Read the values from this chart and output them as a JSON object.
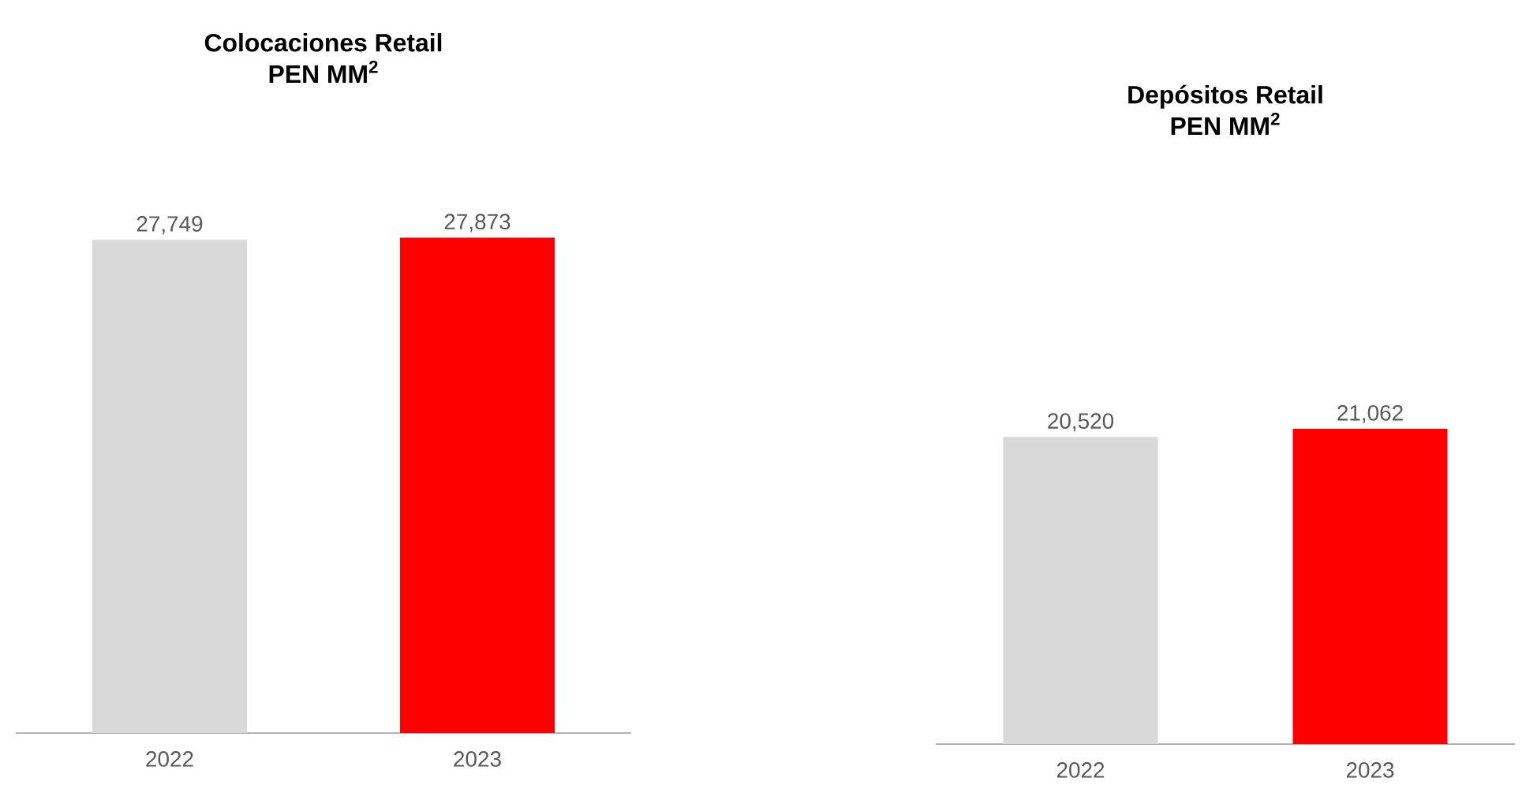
{
  "chart_data": [
    {
      "type": "bar",
      "title": "Colocaciones Retail",
      "subtitle": "PEN MM$^{2}$",
      "categories": [
        "2022",
        "2023"
      ],
      "values": [
        27749,
        27873
      ],
      "colors": [
        "#d9d9d9",
        "#ff0000"
      ],
      "value_labels": [
        "27,749",
        "27,873"
      ]
    },
    {
      "type": "bar",
      "title": "Depósitos Retail",
      "subtitle": "PEN MM$^{2}$",
      "categories": [
        "2022",
        "2023"
      ],
      "values": [
        20520,
        21062
      ],
      "colors": [
        "#d9d9d9",
        "#ff0000"
      ],
      "value_labels": [
        "20,520",
        "21,062"
      ]
    }
  ]
}
